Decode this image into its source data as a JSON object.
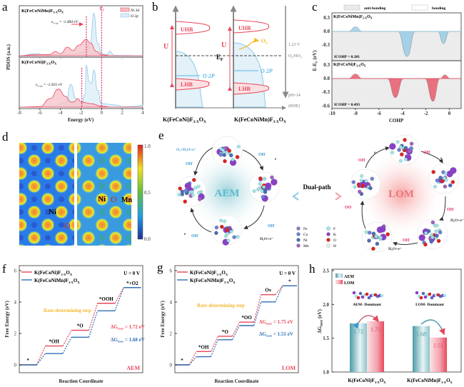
{
  "panel_labels": {
    "a": "a",
    "b": "b",
    "c": "c",
    "d": "d",
    "e": "e",
    "f": "f",
    "g": "g",
    "h": "h"
  },
  "formulas": {
    "mn": {
      "base": "K(FeCoNiMn)F",
      "s1": "3-X",
      "o": "O",
      "s2": "X"
    },
    "ni": {
      "base": "K(FeCoNi)F",
      "s1": "3-X",
      "o": "O",
      "s2": "X"
    }
  },
  "colors": {
    "red": "#e8475a",
    "blue": "#8ec8e6",
    "navy": "#2f6fb5",
    "teal": "#4a9aa6",
    "pink": "#e0306e",
    "orange": "#f5b82e"
  },
  "chart_data": [
    {
      "panel": "a",
      "type": "area",
      "xlabel": "Energy (eV)",
      "ylabel": "PDOS (a.u.)",
      "xlim": [
        -8,
        4
      ],
      "xticks": [
        -8,
        -6,
        -4,
        -2,
        0,
        2,
        4
      ],
      "fermi_label": "E",
      "fermi_sub": "F",
      "legend": [
        "Ni 3d",
        "O 2p"
      ],
      "legend_position": "top-right",
      "subplots": [
        {
          "title_formula": "mn",
          "center_label": "ε",
          "center_sub": "O-2p",
          "center_text": " = -1.484 eV",
          "center_value": -1.484,
          "series": [
            {
              "name": "Ni 3d",
              "points": [
                [
                  -8,
                  0
                ],
                [
                  -6.5,
                  0.02
                ],
                [
                  -5,
                  0.03
                ],
                [
                  -4.5,
                  0.1
                ],
                [
                  -4,
                  0.05
                ],
                [
                  -3.3,
                  0.2
                ],
                [
                  -2.8,
                  0.12
                ],
                [
                  -2.2,
                  0.25
                ],
                [
                  -1.5,
                  0.38
                ],
                [
                  -1.1,
                  0.3
                ],
                [
                  -0.5,
                  0.1
                ],
                [
                  0,
                  0.02
                ],
                [
                  1,
                  0
                ],
                [
                  4,
                  0
                ]
              ]
            },
            {
              "name": "O 2p",
              "points": [
                [
                  -8,
                  0
                ],
                [
                  -6.3,
                  0.05
                ],
                [
                  -5.5,
                  0.01
                ],
                [
                  -4,
                  0.02
                ],
                [
                  -2.5,
                  0.05
                ],
                [
                  -1.6,
                  0.1
                ],
                [
                  -1.1,
                  0.3
                ],
                [
                  -0.75,
                  1.0
                ],
                [
                  -0.4,
                  0.3
                ],
                [
                  0,
                  0.05
                ],
                [
                  0.5,
                  0.02
                ],
                [
                  0.8,
                  0.1
                ],
                [
                  1.2,
                  0.01
                ],
                [
                  4,
                  0
                ]
              ]
            }
          ]
        },
        {
          "title_formula": "ni",
          "center_label": "ε",
          "center_sub": "O-2p",
          "center_text": " = -1.925 eV",
          "center_value": -1.925,
          "series": [
            {
              "name": "Ni 3d",
              "points": [
                [
                  -8,
                  0
                ],
                [
                  -6,
                  0.01
                ],
                [
                  -5,
                  0.2
                ],
                [
                  -4.2,
                  0.42
                ],
                [
                  -3.5,
                  0.25
                ],
                [
                  -3,
                  0.12
                ],
                [
                  -2.7,
                  0.12
                ],
                [
                  -2.3,
                  0.2
                ],
                [
                  -2,
                  0.12
                ],
                [
                  -1,
                  0.08
                ],
                [
                  0,
                  0.02
                ],
                [
                  1,
                  0
                ],
                [
                  4,
                  0
                ]
              ]
            },
            {
              "name": "O 2p",
              "points": [
                [
                  -8,
                  0
                ],
                [
                  -5,
                  0.01
                ],
                [
                  -3.5,
                  0.1
                ],
                [
                  -3,
                  0.53
                ],
                [
                  -2.5,
                  0.2
                ],
                [
                  -2,
                  0.05
                ],
                [
                  -1.6,
                  0.3
                ],
                [
                  -1.5,
                  0.98
                ],
                [
                  -1.2,
                  0.6
                ],
                [
                  -1.0,
                  0.55
                ],
                [
                  -0.75,
                  0.87
                ],
                [
                  -0.4,
                  0.4
                ],
                [
                  0,
                  0.08
                ],
                [
                  1.5,
                  0.05
                ],
                [
                  2,
                  0.01
                ],
                [
                  3.5,
                  0.02
                ],
                [
                  4,
                  0.05
                ]
              ]
            }
          ]
        }
      ]
    },
    {
      "panel": "c",
      "type": "area",
      "xlabel": "COHP",
      "ylabel": "E-E",
      "ylabel_sub": "F",
      "ylabel_unit": " (eV)",
      "xlim": [
        -10,
        1
      ],
      "xticks": [
        -10,
        -8,
        -6,
        -4,
        -2,
        0
      ],
      "legend": [
        "anti-bonding",
        "bonding"
      ],
      "legend_position": "top",
      "subplots": [
        {
          "title_formula": "mn",
          "yticks": [
            0.3,
            0.0,
            -0.3
          ],
          "icohp": "ICOHP = 0.381",
          "color": "#8ec8e6",
          "points": [
            [
              -10,
              0
            ],
            [
              -8.6,
              0
            ],
            [
              -8,
              0.1
            ],
            [
              -7.4,
              0
            ],
            [
              -4.4,
              0
            ],
            [
              -3.6,
              -0.55
            ],
            [
              -2.9,
              0
            ],
            [
              -1,
              0
            ],
            [
              -0.5,
              -0.27
            ],
            [
              0,
              0
            ],
            [
              1,
              0
            ]
          ]
        },
        {
          "title_formula": "ni",
          "yticks": [
            0.3,
            0.0,
            -0.3,
            -0.6
          ],
          "icohp": "ICOHP = 0.493",
          "color": "#e8475a",
          "points": [
            [
              -10,
              0
            ],
            [
              -8.6,
              0
            ],
            [
              -8,
              0.1
            ],
            [
              -7.4,
              0
            ],
            [
              -5.3,
              0
            ],
            [
              -4.6,
              -0.42
            ],
            [
              -3.9,
              0
            ],
            [
              -2.1,
              0
            ],
            [
              -1.4,
              -0.5
            ],
            [
              -0.8,
              0
            ],
            [
              -0.4,
              0.08
            ],
            [
              0.1,
              0
            ],
            [
              1,
              0
            ]
          ]
        }
      ]
    },
    {
      "panel": "f",
      "type": "line",
      "xlabel": "Reaction Coordinate",
      "ylabel": "Free Energy (eV)",
      "ylim": [
        0,
        6
      ],
      "yticks": [
        0,
        2,
        4,
        6
      ],
      "condition": "U = 0 V",
      "mechanism": "AEM",
      "rds_label": "Rate-determining step",
      "states": [
        "*",
        "*OH",
        "*O",
        "*OOH",
        "*+O2"
      ],
      "series": [
        {
          "formula": "ni",
          "values": [
            0,
            1.2,
            2.2,
            3.92,
            4.92
          ],
          "dg_text": "ΔG",
          "dg_sub": "max",
          "dg_val": " = 1.72 eV"
        },
        {
          "formula": "mn",
          "values": [
            0,
            0.72,
            1.76,
            3.44,
            4.92
          ],
          "dg_text": "ΔG",
          "dg_sub": "max",
          "dg_val": " = 1.68 eV"
        }
      ],
      "legend_position": "top-left"
    },
    {
      "panel": "g",
      "type": "line",
      "xlabel": "Reaction Coordinate",
      "ylabel": "Free Energy (eV)",
      "ylim": [
        0,
        6
      ],
      "yticks": [
        0,
        2,
        4,
        6
      ],
      "condition": "U = 0 V",
      "mechanism": "LOM",
      "rds_label": "Rate-determining step",
      "states": [
        "*",
        "*OH",
        "*O",
        "*OO",
        "Ov",
        "*"
      ],
      "series": [
        {
          "formula": "ni",
          "values": [
            0,
            0.85,
            1.82,
            2.72,
            4.47,
            5.03
          ],
          "dg_text": "ΔG",
          "dg_sub": "max",
          "dg_val": " = 1.75 eV"
        },
        {
          "formula": "mn",
          "values": [
            0,
            0.52,
            1.6,
            2.5,
            4.01,
            5.03
          ],
          "dg_text": "ΔG",
          "dg_sub": "max",
          "dg_val": " = 1.51 eV"
        }
      ],
      "legend_position": "top-left"
    },
    {
      "panel": "h",
      "type": "bar",
      "ylabel": "ΔG",
      "ylabel_sub": "max",
      "ylabel_unit": " (eV)",
      "ylim": [
        1.0,
        2.5
      ],
      "yticks": [
        1.0,
        1.5,
        2.0,
        2.5
      ],
      "categories": [
        "ni",
        "mn"
      ],
      "category_notes": [
        "AEM- Dominant",
        "LOM- Dominant"
      ],
      "series": [
        {
          "name": "AEM",
          "values": [
            1.72,
            1.68
          ],
          "labels": [
            "1.72",
            "1.68"
          ],
          "color": "#4a9aa6"
        },
        {
          "name": "LOM",
          "values": [
            1.75,
            1.51
          ],
          "labels": [
            "1.75",
            "1.51"
          ],
          "color": "#e8475a"
        }
      ],
      "legend_position": "top-left"
    }
  ],
  "panel_b": {
    "uhb": "UHB",
    "lhb": "LHB",
    "u": "U",
    "ef": "E",
    "ef_sub": "F",
    "o2p": "O 2P",
    "o2": "O",
    "o2_sub": "2",
    "potential": "1.23 V",
    "couple": "O",
    "couple_sub": "2",
    "couple_rest": "/HO",
    "couple_sub2": "2",
    "ph": "pH=14",
    "rhe": "(RHE)"
  },
  "panel_d": {
    "labels": [
      "Ni",
      "O",
      "Ni",
      "O",
      "Mn"
    ],
    "colorbar_ticks": [
      "1.0",
      "0.5",
      "0.0"
    ]
  },
  "panel_e": {
    "aem": "AEM",
    "lom": "LOM",
    "dual": "Dual-path",
    "oh": "OH",
    "minus": "-",
    "e": "e",
    "o2h2o": "O₂+H₂O+e⁻",
    "h2oe": "H₂O+e⁻",
    "oo": "OO",
    "legend": [
      {
        "el": "Fe",
        "color": "#8a78c8"
      },
      {
        "el": "Co",
        "color": "#6d7fd6"
      },
      {
        "el": "Ni",
        "color": "#4c6cb8"
      },
      {
        "el": "Mn",
        "color": "#a060c0"
      },
      {
        "el": "F",
        "color": "#9be8e8"
      },
      {
        "el": "K",
        "color": "#8a3fc8"
      },
      {
        "el": "O",
        "color": "#e02020"
      },
      {
        "el": "H",
        "color": "#eeeeee"
      }
    ]
  }
}
